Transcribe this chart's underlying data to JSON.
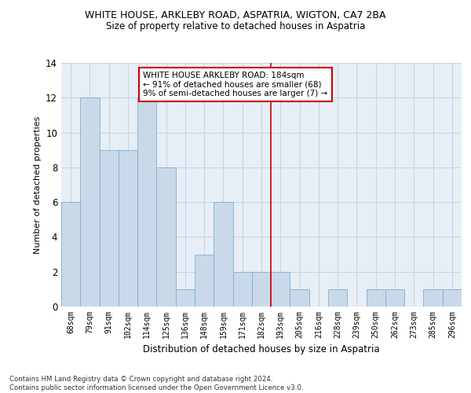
{
  "title1": "WHITE HOUSE, ARKLEBY ROAD, ASPATRIA, WIGTON, CA7 2BA",
  "title2": "Size of property relative to detached houses in Aspatria",
  "xlabel": "Distribution of detached houses by size in Aspatria",
  "ylabel": "Number of detached properties",
  "categories": [
    "68sqm",
    "79sqm",
    "91sqm",
    "102sqm",
    "114sqm",
    "125sqm",
    "136sqm",
    "148sqm",
    "159sqm",
    "171sqm",
    "182sqm",
    "193sqm",
    "205sqm",
    "216sqm",
    "228sqm",
    "239sqm",
    "250sqm",
    "262sqm",
    "273sqm",
    "285sqm",
    "296sqm"
  ],
  "values": [
    6,
    12,
    9,
    9,
    12,
    8,
    1,
    3,
    6,
    2,
    2,
    2,
    1,
    0,
    1,
    0,
    1,
    1,
    0,
    1,
    1
  ],
  "bar_color": "#c9d9e8",
  "bar_edge_color": "#7aafd4",
  "vline_x": 10.5,
  "vline_color": "#cc0000",
  "annotation_text": "WHITE HOUSE ARKLEBY ROAD: 184sqm\n← 91% of detached houses are smaller (68)\n9% of semi-detached houses are larger (7) →",
  "annotation_box_color": "#cc0000",
  "annotation_bg": "#ffffff",
  "footnote": "Contains HM Land Registry data © Crown copyright and database right 2024.\nContains public sector information licensed under the Open Government Licence v3.0.",
  "ylim": [
    0,
    14
  ],
  "yticks": [
    0,
    2,
    4,
    6,
    8,
    10,
    12,
    14
  ],
  "grid_color": "#c8d4e4",
  "bg_color": "#e8eef6"
}
